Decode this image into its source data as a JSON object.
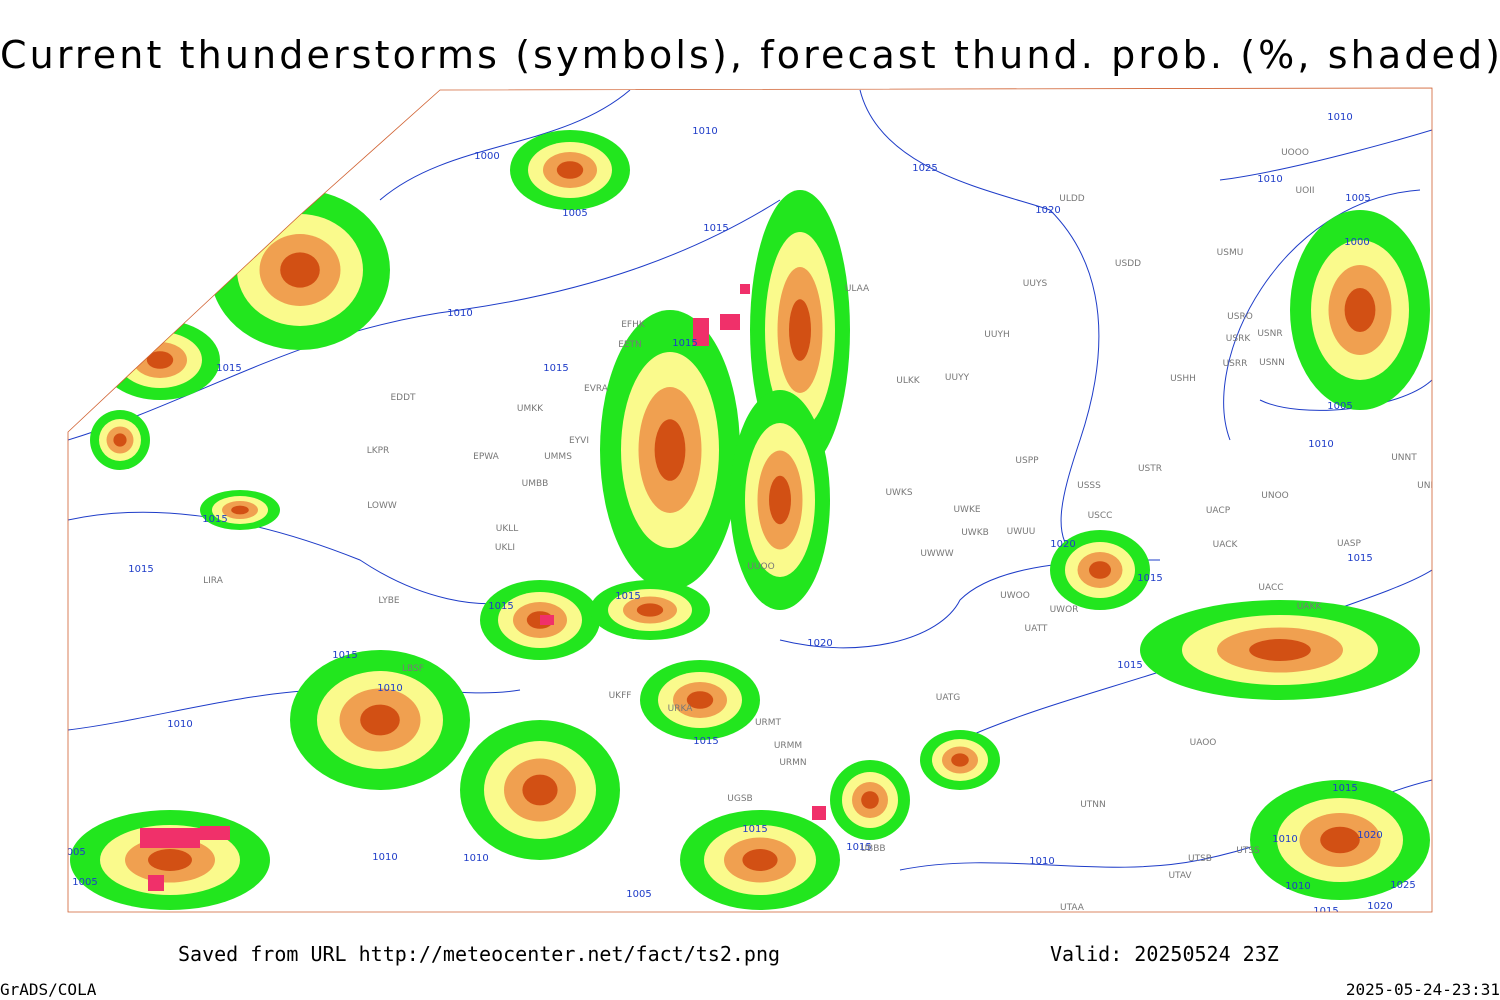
{
  "header": {
    "title": "Current thunderstorms (symbols), forecast thund. prob. (%, shaded)"
  },
  "map": {
    "isobar_labels": [
      "1010",
      "1000",
      "1005",
      "1025",
      "1020",
      "1015",
      "1010",
      "1015",
      "1015",
      "1015",
      "1010",
      "1010",
      "1005",
      "1000",
      "1005",
      "1010",
      "1015",
      "1015",
      "1015",
      "1015",
      "1020",
      "1015",
      "1015",
      "1015",
      "1010",
      "1020",
      "1015",
      "1010",
      "1015",
      "1015",
      "1015",
      "1010",
      "1010",
      "1005",
      "1005",
      "1010",
      "1015",
      "1020",
      "1010",
      "1010",
      "1025",
      "1020",
      "1015",
      "1005"
    ],
    "stations": [
      "ULDD",
      "USDD",
      "USMU",
      "UUYS",
      "USRO",
      "USRK",
      "USRR",
      "USNR",
      "USNN",
      "UUYH",
      "ULKK",
      "UUYY",
      "USHH",
      "UOII",
      "UOOO",
      "ULAA",
      "EFHK",
      "EETN",
      "EVRA",
      "UMKK",
      "EYVI",
      "UMMS",
      "EPWA",
      "UMBB",
      "USPP",
      "USSS",
      "USTR",
      "UNOO",
      "UNNT",
      "UNBB",
      "UWKS",
      "UWKE",
      "UWKB",
      "UWWW",
      "UWUU",
      "USCC",
      "UACP",
      "UACK",
      "UASP",
      "UUOO",
      "UWOO",
      "UWOR",
      "UATT",
      "UACC",
      "UAKK",
      "LKPR",
      "LOWW",
      "LIRA",
      "LYBE",
      "LBSF",
      "UKLL",
      "UKLI",
      "UATG",
      "UAOO",
      "UTNN",
      "UTSB",
      "UTSS",
      "UTAV",
      "UTAA",
      "UBBB",
      "UGSB",
      "UKFF",
      "URKA",
      "URMM",
      "URMT",
      "URMN",
      "EDDT"
    ]
  },
  "footer": {
    "saved_from": "Saved from URL http://meteocenter.net/fact/ts2.png",
    "valid": "Valid: 20250524 23Z",
    "software": "GrADS/COLA",
    "timestamp": "2025-05-24-23:31"
  }
}
